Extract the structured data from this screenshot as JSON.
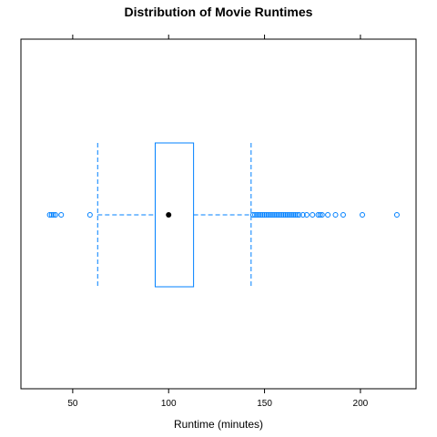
{
  "chart_data": {
    "type": "boxplot",
    "title": "Distribution of Movie Runtimes",
    "xlabel": "Runtime (minutes)",
    "ylabel": "",
    "xlim": [
      23,
      229
    ],
    "x_ticks": [
      50,
      100,
      150,
      200
    ],
    "x_tick_labels": [
      "50",
      "100",
      "150",
      "200"
    ],
    "grid": false,
    "box": {
      "median": 100,
      "q1": 93,
      "q3": 113,
      "whisker_low": 63,
      "whisker_high": 143
    },
    "outliers": [
      38,
      39,
      40,
      41,
      44,
      59,
      144,
      145,
      146,
      147,
      148,
      149,
      150,
      151,
      152,
      153,
      154,
      155,
      156,
      157,
      158,
      159,
      160,
      161,
      162,
      163,
      164,
      165,
      166,
      167,
      168,
      170,
      172,
      175,
      178,
      179,
      180,
      183,
      187,
      191,
      201,
      219
    ],
    "colors": {
      "box": "#0080ff",
      "median_dot": "#000000",
      "axes": "#000000"
    }
  }
}
